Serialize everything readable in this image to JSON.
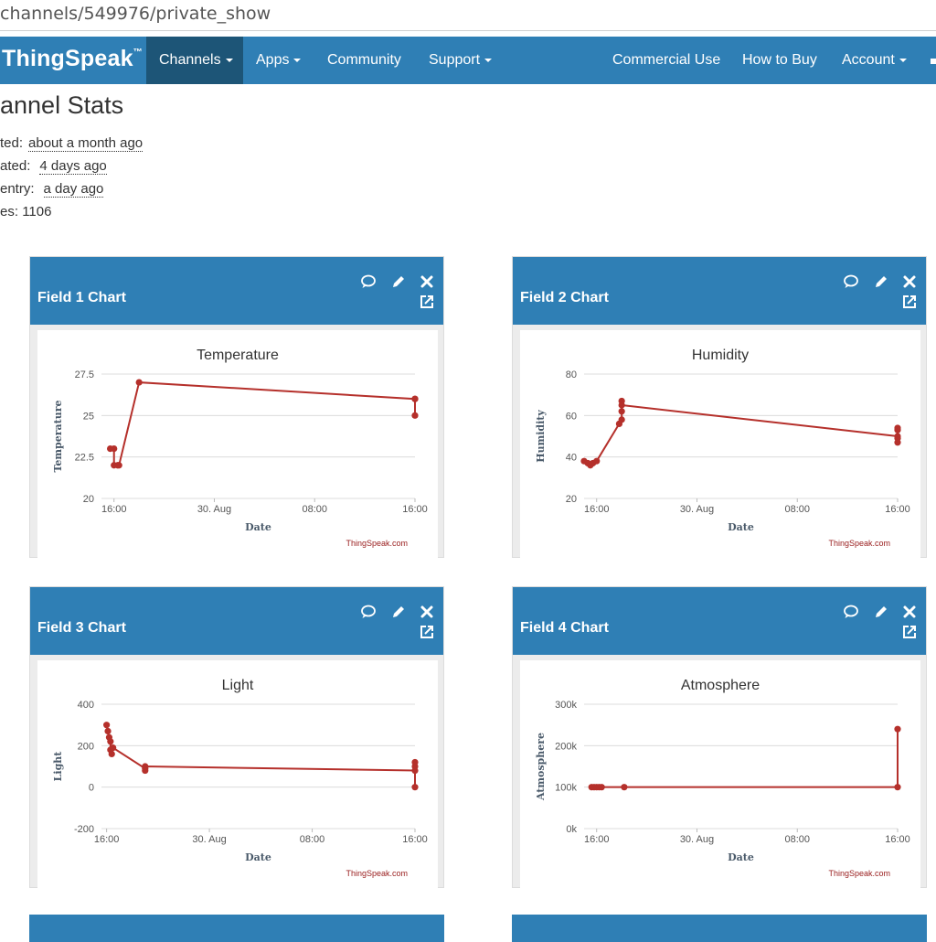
{
  "browser": {
    "url": "channels/549976/private_show"
  },
  "nav": {
    "brand": "ThingSpeak",
    "brand_tm": "™",
    "channels": "Channels",
    "apps": "Apps",
    "community": "Community",
    "support": "Support",
    "commercial": "Commercial Use",
    "how_to_buy": "How to Buy",
    "account": "Account"
  },
  "stats": {
    "title": "annel Stats",
    "created_label": "ted:",
    "created_value": "about a month ago",
    "updated_label": "ated:",
    "updated_value": "4 days ago",
    "last_entry_label": "entry:",
    "last_entry_value": "a day ago",
    "entries_label": "es:",
    "entries_value": "1106"
  },
  "panels": [
    {
      "title": "Field 1 Chart"
    },
    {
      "title": "Field 2 Chart"
    },
    {
      "title": "Field 3 Chart"
    },
    {
      "title": "Field 4 Chart"
    }
  ],
  "colors": {
    "header": "#2f7fb5",
    "active_tab": "#1d5577",
    "series": "#b5302b"
  },
  "icons": [
    "comment-icon",
    "pencil-icon",
    "close-icon",
    "external-link-icon"
  ],
  "chart_data": [
    {
      "type": "line",
      "title": "Temperature",
      "xlabel": "Date",
      "ylabel": "Temperature",
      "yticks": [
        "20",
        "22.5",
        "25",
        "27.5"
      ],
      "ylim": [
        20,
        27.5
      ],
      "xticks": [
        "16:00",
        "30. Aug",
        "08:00",
        "16:00"
      ],
      "x_tick_hours": [
        0,
        8,
        16,
        24
      ],
      "xlim_hours": [
        -1,
        24
      ],
      "credit": "ThingSpeak.com",
      "series": [
        {
          "x_hours": [
            -0.3,
            0.0,
            0.0,
            0.3,
            0.4,
            2.0,
            24.0,
            24.0,
            24.0
          ],
          "values": [
            23,
            23,
            22,
            22,
            22,
            27,
            26,
            26,
            25
          ]
        }
      ]
    },
    {
      "type": "line",
      "title": "Humidity",
      "xlabel": "Date",
      "ylabel": "Humidity",
      "yticks": [
        "20",
        "40",
        "60",
        "80"
      ],
      "ylim": [
        20,
        80
      ],
      "xticks": [
        "16:00",
        "30. Aug",
        "08:00",
        "16:00"
      ],
      "x_tick_hours": [
        0,
        8,
        16,
        24
      ],
      "xlim_hours": [
        -1,
        24
      ],
      "credit": "ThingSpeak.com",
      "series": [
        {
          "x_hours": [
            -1.0,
            -0.7,
            -0.5,
            -0.3,
            0.0,
            1.8,
            2.0,
            2.0,
            2.0,
            2.0,
            24.0,
            24.0,
            24.0,
            24.0,
            24.0
          ],
          "values": [
            38,
            37,
            36,
            37,
            38,
            56,
            58,
            62,
            67,
            65,
            50,
            53,
            54,
            49,
            47
          ]
        }
      ]
    },
    {
      "type": "line",
      "title": "Light",
      "xlabel": "Date",
      "ylabel": "Light",
      "yticks": [
        "-200",
        "0",
        "200",
        "400"
      ],
      "ylim": [
        -200,
        400
      ],
      "xticks": [
        "16:00",
        "30. Aug",
        "08:00",
        "16:00"
      ],
      "x_tick_hours": [
        0,
        8,
        16,
        24
      ],
      "xlim_hours": [
        -0.4,
        24
      ],
      "credit": "ThingSpeak.com",
      "series": [
        {
          "x_hours": [
            0.0,
            0.1,
            0.2,
            0.3,
            0.3,
            0.4,
            0.5,
            3.0,
            3.0,
            3.0,
            24.0,
            24.0,
            24.0,
            24.0
          ],
          "values": [
            300,
            270,
            240,
            220,
            180,
            160,
            190,
            90,
            80,
            100,
            80,
            100,
            120,
            0
          ]
        }
      ]
    },
    {
      "type": "line",
      "title": "Atmosphere",
      "xlabel": "Date",
      "ylabel": "Atmosphere",
      "yticks": [
        "0k",
        "100k",
        "200k",
        "300k"
      ],
      "ylim": [
        0,
        300000
      ],
      "xticks": [
        "16:00",
        "30. Aug",
        "08:00",
        "16:00"
      ],
      "x_tick_hours": [
        0,
        8,
        16,
        24
      ],
      "xlim_hours": [
        -1,
        24
      ],
      "credit": "ThingSpeak.com",
      "series": [
        {
          "x_hours": [
            -0.4,
            -0.2,
            0.0,
            0.2,
            0.4,
            2.2,
            24.0,
            24.0
          ],
          "values": [
            100000,
            100000,
            100000,
            100000,
            100000,
            100000,
            100000,
            240000
          ]
        }
      ]
    }
  ]
}
